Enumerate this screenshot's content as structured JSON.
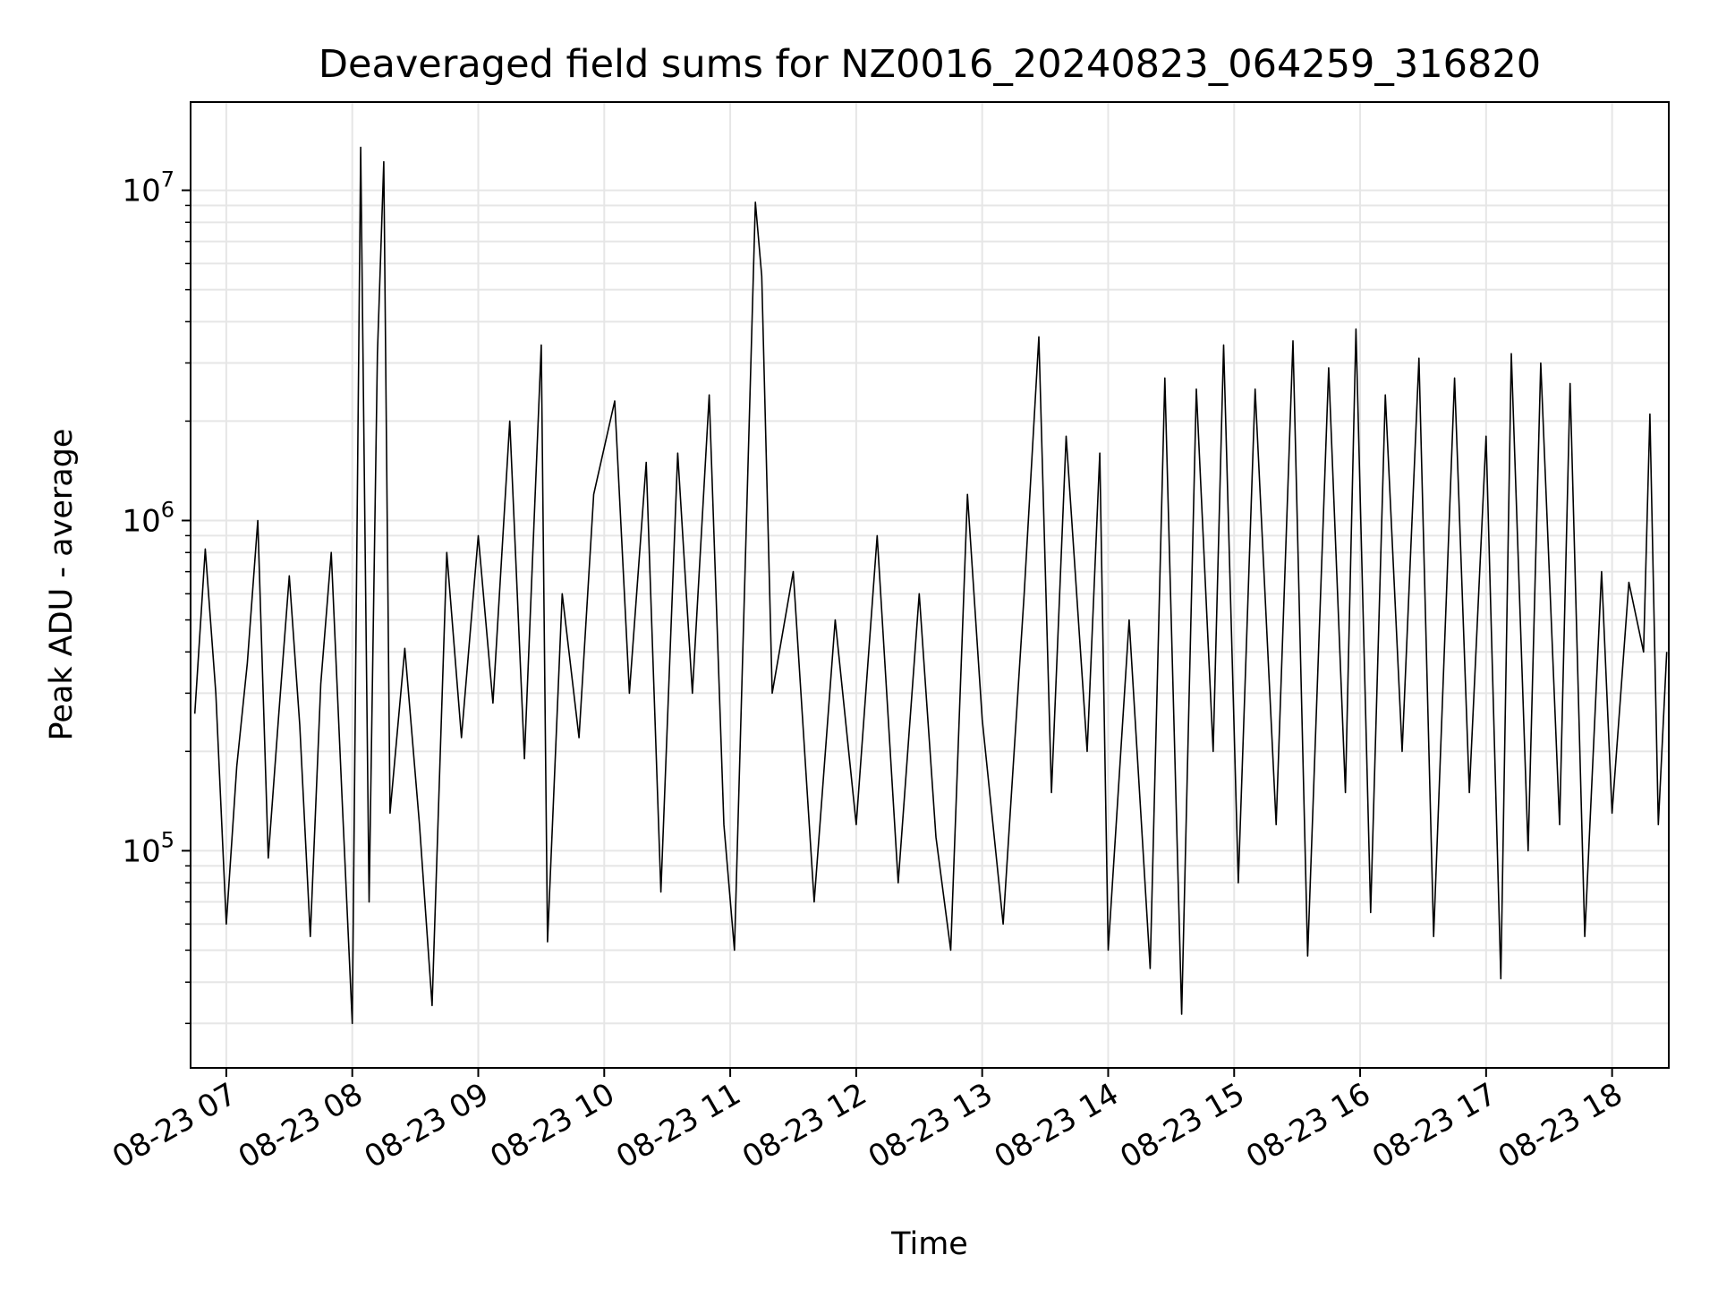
{
  "chart_data": {
    "type": "line",
    "title": "Deaveraged field sums for NZ0016_20240823_064259_316820",
    "xlabel": "Time",
    "ylabel": "Peak ADU - average",
    "yscale": "log",
    "grid": true,
    "line_color": "#000000",
    "grid_color": "#e6e6e6",
    "xlim": [
      "2024-08-23 06:43",
      "2024-08-23 18:27"
    ],
    "ylim": [
      22000,
      18500000
    ],
    "x_ticks": [
      {
        "value": "2024-08-23 07:00",
        "label": "08-23 07"
      },
      {
        "value": "2024-08-23 08:00",
        "label": "08-23 08"
      },
      {
        "value": "2024-08-23 09:00",
        "label": "08-23 09"
      },
      {
        "value": "2024-08-23 10:00",
        "label": "08-23 10"
      },
      {
        "value": "2024-08-23 11:00",
        "label": "08-23 11"
      },
      {
        "value": "2024-08-23 12:00",
        "label": "08-23 12"
      },
      {
        "value": "2024-08-23 13:00",
        "label": "08-23 13"
      },
      {
        "value": "2024-08-23 14:00",
        "label": "08-23 14"
      },
      {
        "value": "2024-08-23 15:00",
        "label": "08-23 15"
      },
      {
        "value": "2024-08-23 16:00",
        "label": "08-23 16"
      },
      {
        "value": "2024-08-23 17:00",
        "label": "08-23 17"
      },
      {
        "value": "2024-08-23 18:00",
        "label": "08-23 18"
      }
    ],
    "y_ticks": [
      {
        "value": 100000,
        "base": "10",
        "exp": "5"
      },
      {
        "value": 1000000,
        "base": "10",
        "exp": "6"
      },
      {
        "value": 10000000,
        "base": "10",
        "exp": "7"
      }
    ],
    "series": [
      {
        "values": [
          [
            "2024-08-23 06:45",
            260000
          ],
          [
            "2024-08-23 06:50",
            820000
          ],
          [
            "2024-08-23 06:55",
            300000
          ],
          [
            "2024-08-23 07:00",
            60000
          ],
          [
            "2024-08-23 07:05",
            180000
          ],
          [
            "2024-08-23 07:10",
            370000
          ],
          [
            "2024-08-23 07:15",
            1000000
          ],
          [
            "2024-08-23 07:20",
            95000
          ],
          [
            "2024-08-23 07:25",
            260000
          ],
          [
            "2024-08-23 07:30",
            680000
          ],
          [
            "2024-08-23 07:35",
            240000
          ],
          [
            "2024-08-23 07:40",
            55000
          ],
          [
            "2024-08-23 07:45",
            320000
          ],
          [
            "2024-08-23 07:50",
            800000
          ],
          [
            "2024-08-23 07:55",
            150000
          ],
          [
            "2024-08-23 08:00",
            30000
          ],
          [
            "2024-08-23 08:04",
            13500000
          ],
          [
            "2024-08-23 08:08",
            70000
          ],
          [
            "2024-08-23 08:12",
            3200000
          ],
          [
            "2024-08-23 08:15",
            12200000
          ],
          [
            "2024-08-23 08:18",
            130000
          ],
          [
            "2024-08-23 08:25",
            410000
          ],
          [
            "2024-08-23 08:32",
            120000
          ],
          [
            "2024-08-23 08:38",
            34000
          ],
          [
            "2024-08-23 08:45",
            800000
          ],
          [
            "2024-08-23 08:52",
            220000
          ],
          [
            "2024-08-23 09:00",
            900000
          ],
          [
            "2024-08-23 09:07",
            280000
          ],
          [
            "2024-08-23 09:15",
            2000000
          ],
          [
            "2024-08-23 09:22",
            190000
          ],
          [
            "2024-08-23 09:30",
            3400000
          ],
          [
            "2024-08-23 09:33",
            53000
          ],
          [
            "2024-08-23 09:40",
            600000
          ],
          [
            "2024-08-23 09:48",
            220000
          ],
          [
            "2024-08-23 09:55",
            1200000
          ],
          [
            "2024-08-23 10:05",
            2300000
          ],
          [
            "2024-08-23 10:12",
            300000
          ],
          [
            "2024-08-23 10:20",
            1500000
          ],
          [
            "2024-08-23 10:27",
            75000
          ],
          [
            "2024-08-23 10:35",
            1600000
          ],
          [
            "2024-08-23 10:42",
            300000
          ],
          [
            "2024-08-23 10:50",
            2400000
          ],
          [
            "2024-08-23 10:57",
            120000
          ],
          [
            "2024-08-23 11:02",
            50000
          ],
          [
            "2024-08-23 11:12",
            9200000
          ],
          [
            "2024-08-23 11:15",
            5500000
          ],
          [
            "2024-08-23 11:20",
            300000
          ],
          [
            "2024-08-23 11:30",
            700000
          ],
          [
            "2024-08-23 11:40",
            70000
          ],
          [
            "2024-08-23 11:50",
            500000
          ],
          [
            "2024-08-23 12:00",
            120000
          ],
          [
            "2024-08-23 12:10",
            900000
          ],
          [
            "2024-08-23 12:20",
            80000
          ],
          [
            "2024-08-23 12:30",
            600000
          ],
          [
            "2024-08-23 12:38",
            110000
          ],
          [
            "2024-08-23 12:45",
            50000
          ],
          [
            "2024-08-23 12:53",
            1200000
          ],
          [
            "2024-08-23 13:00",
            250000
          ],
          [
            "2024-08-23 13:10",
            60000
          ],
          [
            "2024-08-23 13:20",
            600000
          ],
          [
            "2024-08-23 13:27",
            3600000
          ],
          [
            "2024-08-23 13:33",
            150000
          ],
          [
            "2024-08-23 13:40",
            1800000
          ],
          [
            "2024-08-23 13:50",
            200000
          ],
          [
            "2024-08-23 13:56",
            1600000
          ],
          [
            "2024-08-23 14:00",
            50000
          ],
          [
            "2024-08-23 14:10",
            500000
          ],
          [
            "2024-08-23 14:20",
            44000
          ],
          [
            "2024-08-23 14:27",
            2700000
          ],
          [
            "2024-08-23 14:35",
            32000
          ],
          [
            "2024-08-23 14:42",
            2500000
          ],
          [
            "2024-08-23 14:50",
            200000
          ],
          [
            "2024-08-23 14:55",
            3400000
          ],
          [
            "2024-08-23 15:02",
            80000
          ],
          [
            "2024-08-23 15:10",
            2500000
          ],
          [
            "2024-08-23 15:20",
            120000
          ],
          [
            "2024-08-23 15:28",
            3500000
          ],
          [
            "2024-08-23 15:35",
            48000
          ],
          [
            "2024-08-23 15:45",
            2900000
          ],
          [
            "2024-08-23 15:53",
            150000
          ],
          [
            "2024-08-23 15:58",
            3800000
          ],
          [
            "2024-08-23 16:05",
            65000
          ],
          [
            "2024-08-23 16:12",
            2400000
          ],
          [
            "2024-08-23 16:20",
            200000
          ],
          [
            "2024-08-23 16:28",
            3100000
          ],
          [
            "2024-08-23 16:35",
            55000
          ],
          [
            "2024-08-23 16:45",
            2700000
          ],
          [
            "2024-08-23 16:52",
            150000
          ],
          [
            "2024-08-23 17:00",
            1800000
          ],
          [
            "2024-08-23 17:07",
            41000
          ],
          [
            "2024-08-23 17:12",
            3200000
          ],
          [
            "2024-08-23 17:20",
            100000
          ],
          [
            "2024-08-23 17:26",
            3000000
          ],
          [
            "2024-08-23 17:35",
            120000
          ],
          [
            "2024-08-23 17:40",
            2600000
          ],
          [
            "2024-08-23 17:47",
            55000
          ],
          [
            "2024-08-23 17:55",
            700000
          ],
          [
            "2024-08-23 18:00",
            130000
          ],
          [
            "2024-08-23 18:08",
            650000
          ],
          [
            "2024-08-23 18:15",
            400000
          ],
          [
            "2024-08-23 18:18",
            2100000
          ],
          [
            "2024-08-23 18:22",
            120000
          ],
          [
            "2024-08-23 18:26",
            400000
          ]
        ]
      }
    ]
  }
}
